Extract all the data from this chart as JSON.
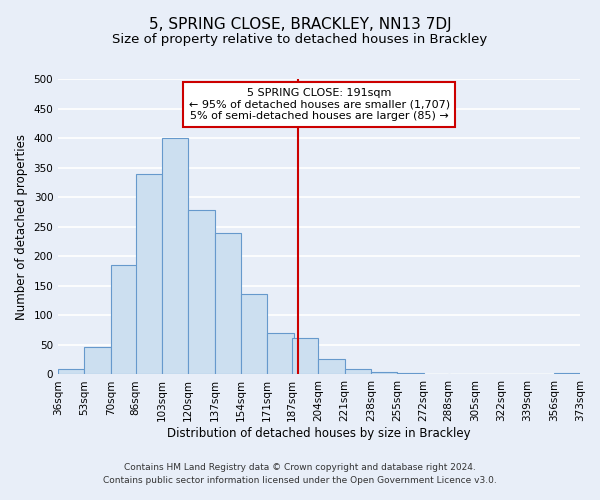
{
  "title": "5, SPRING CLOSE, BRACKLEY, NN13 7DJ",
  "subtitle": "Size of property relative to detached houses in Brackley",
  "xlabel": "Distribution of detached houses by size in Brackley",
  "ylabel": "Number of detached properties",
  "bar_left_edges": [
    36,
    53,
    70,
    86,
    103,
    120,
    137,
    154,
    171,
    187,
    204,
    221,
    238,
    255,
    272,
    288,
    305,
    322,
    339,
    356
  ],
  "bar_heights": [
    10,
    47,
    185,
    340,
    400,
    278,
    240,
    136,
    70,
    62,
    26,
    10,
    5,
    2,
    1,
    1,
    0,
    0,
    0,
    2
  ],
  "bin_width": 17,
  "bar_color": "#ccdff0",
  "bar_edgecolor": "#6699cc",
  "tick_labels": [
    "36sqm",
    "53sqm",
    "70sqm",
    "86sqm",
    "103sqm",
    "120sqm",
    "137sqm",
    "154sqm",
    "171sqm",
    "187sqm",
    "204sqm",
    "221sqm",
    "238sqm",
    "255sqm",
    "272sqm",
    "288sqm",
    "305sqm",
    "322sqm",
    "339sqm",
    "356sqm",
    "373sqm"
  ],
  "ylim": [
    0,
    500
  ],
  "yticks": [
    0,
    50,
    100,
    150,
    200,
    250,
    300,
    350,
    400,
    450,
    500
  ],
  "vline_x": 191,
  "vline_color": "#cc0000",
  "annotation_title": "5 SPRING CLOSE: 191sqm",
  "annotation_line1": "← 95% of detached houses are smaller (1,707)",
  "annotation_line2": "5% of semi-detached houses are larger (85) →",
  "footer1": "Contains HM Land Registry data © Crown copyright and database right 2024.",
  "footer2": "Contains public sector information licensed under the Open Government Licence v3.0.",
  "background_color": "#e8eef8",
  "plot_bg_color": "#e8eef8",
  "grid_color": "#ffffff",
  "title_fontsize": 11,
  "subtitle_fontsize": 9.5,
  "axis_label_fontsize": 8.5,
  "tick_fontsize": 7.5,
  "annotation_fontsize": 8,
  "footer_fontsize": 6.5
}
